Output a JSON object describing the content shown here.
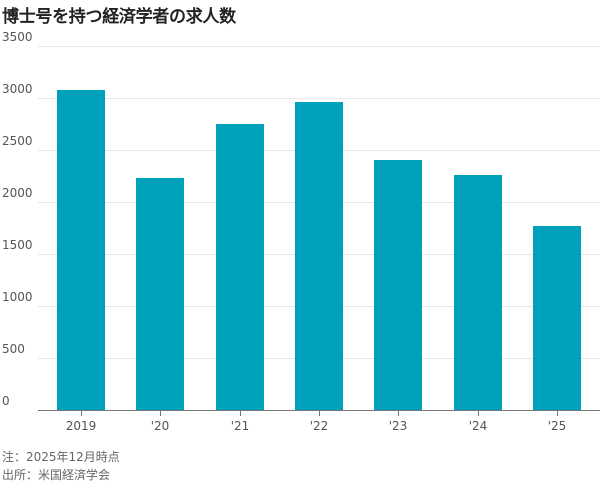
{
  "chart_data": {
    "type": "bar",
    "title": "博士号を持つ経済学者の求人数",
    "categories": [
      "2019",
      "'20",
      "'21",
      "'22",
      "'23",
      "'24",
      "'25"
    ],
    "values": [
      3080,
      2230,
      2750,
      2960,
      2400,
      2260,
      1770
    ],
    "xlabel": "",
    "ylabel": "",
    "ylim": [
      0,
      3500
    ],
    "yticks": [
      0,
      500,
      1000,
      1500,
      2000,
      2500,
      3000,
      3500
    ],
    "grid": true,
    "bar_color": "#00a2bb",
    "notes": [
      "注：2025年12月時点",
      "出所：米国経済学会"
    ]
  },
  "title": "博士号を持つ経済学者の求人数",
  "yticks": [
    "3500",
    "3000",
    "2500",
    "2000",
    "1500",
    "1000",
    "500",
    "0"
  ],
  "notes": {
    "note": "注：2025年12月時点",
    "source": "出所：米国経済学会"
  }
}
